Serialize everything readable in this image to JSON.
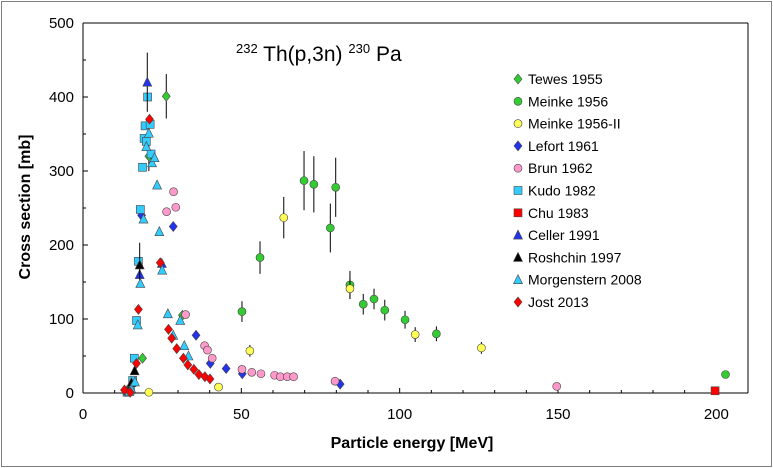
{
  "chart_data": {
    "type": "scatter",
    "title": {
      "prefix": "232",
      "main": "Th(p,3n)",
      "suffix": "230",
      "end": "Pa"
    },
    "xlabel": "Particle energy [MeV]",
    "ylabel": "Cross section [mb]",
    "xlim": [
      0,
      210
    ],
    "ylim": [
      0,
      500
    ],
    "xticks": [
      0,
      50,
      100,
      150,
      200
    ],
    "yticks": [
      0,
      100,
      200,
      300,
      400,
      500
    ],
    "legend_position": "right",
    "series": [
      {
        "name": "Tewes 1955",
        "marker": "diamond",
        "color": "#33cc33",
        "points": [
          [
            18.8,
            47,
            0
          ],
          [
            20.8,
            320,
            20
          ],
          [
            26.3,
            401,
            30
          ],
          [
            31.4,
            105,
            0
          ]
        ]
      },
      {
        "name": "Meinke 1956",
        "marker": "circle",
        "color": "#33cc33",
        "points": [
          [
            50.2,
            110,
            14
          ],
          [
            55.9,
            183,
            22
          ],
          [
            69.8,
            287,
            40
          ],
          [
            72.9,
            282,
            38
          ],
          [
            78.1,
            223,
            33
          ],
          [
            79.8,
            278,
            40
          ],
          [
            84.3,
            146,
            19
          ],
          [
            88.5,
            120,
            14
          ],
          [
            91.9,
            127,
            14
          ],
          [
            95.3,
            112,
            14
          ],
          [
            101.7,
            99,
            12
          ],
          [
            111.6,
            80,
            10
          ],
          [
            202.9,
            25,
            0
          ]
        ]
      },
      {
        "name": "Meinke 1956-II",
        "marker": "circle",
        "color": "#ffff55",
        "points": [
          [
            20.8,
            1,
            0
          ],
          [
            42.8,
            8,
            0
          ],
          [
            52.7,
            57,
            8
          ],
          [
            63.4,
            237,
            28
          ],
          [
            84.3,
            141,
            14
          ],
          [
            104.9,
            79,
            10
          ],
          [
            125.8,
            61,
            8
          ]
        ]
      },
      {
        "name": "Lefort 1961",
        "marker": "diamond",
        "color": "#2233ee",
        "points": [
          [
            18.5,
            240,
            0
          ],
          [
            28.5,
            225,
            0
          ],
          [
            35.7,
            78,
            0
          ],
          [
            40.2,
            40,
            0
          ],
          [
            45.2,
            33,
            0
          ],
          [
            50.3,
            26,
            0
          ],
          [
            81.2,
            12,
            0
          ]
        ]
      },
      {
        "name": "Brun 1962",
        "marker": "circle",
        "color": "#ff99cc",
        "points": [
          [
            26.4,
            245,
            0
          ],
          [
            28.6,
            272,
            0
          ],
          [
            29.3,
            251,
            0
          ],
          [
            32.4,
            106,
            0
          ],
          [
            38.4,
            64,
            0
          ],
          [
            39.3,
            58,
            0
          ],
          [
            40.8,
            47,
            0
          ],
          [
            50.2,
            32,
            0
          ],
          [
            53.3,
            28,
            0
          ],
          [
            56.2,
            26,
            0
          ],
          [
            60.5,
            24,
            0
          ],
          [
            62.3,
            22,
            0
          ],
          [
            64.5,
            22,
            0
          ],
          [
            66.5,
            22,
            0
          ],
          [
            79.6,
            16,
            0
          ],
          [
            149.6,
            9,
            0
          ]
        ]
      },
      {
        "name": "Kudo 1982",
        "marker": "square",
        "color": "#33ccff",
        "points": [
          [
            13.9,
            1,
            0
          ],
          [
            15.0,
            4,
            0
          ],
          [
            15.7,
            17,
            0
          ],
          [
            16.2,
            47,
            0
          ],
          [
            16.9,
            98,
            0
          ],
          [
            17.5,
            178,
            0
          ],
          [
            18.1,
            248,
            0
          ],
          [
            18.8,
            305,
            0
          ],
          [
            19.3,
            344,
            0
          ],
          [
            19.6,
            361,
            0
          ],
          [
            20.0,
            340,
            0
          ],
          [
            20.4,
            400,
            0
          ],
          [
            21.2,
            363,
            0
          ],
          [
            21.5,
            323,
            0
          ]
        ]
      },
      {
        "name": "Chu 1983",
        "marker": "square",
        "color": "#ff0000",
        "points": [
          [
            199.6,
            3,
            0
          ]
        ]
      },
      {
        "name": "Celler 1991",
        "marker": "triangle",
        "color": "#2233ee",
        "points": [
          [
            17.9,
            160,
            0
          ],
          [
            20.3,
            420,
            40
          ],
          [
            24.9,
            175,
            0
          ]
        ]
      },
      {
        "name": "Roshchin 1997",
        "marker": "triangle",
        "color": "#000000",
        "points": [
          [
            14.3,
            3,
            0
          ],
          [
            15.3,
            14,
            0
          ],
          [
            16.3,
            30,
            0
          ],
          [
            17.9,
            173,
            30
          ]
        ]
      },
      {
        "name": "Morgenstern 2008",
        "marker": "triangle",
        "color": "#33ccff",
        "points": [
          [
            14.6,
            2,
            0
          ],
          [
            15.2,
            6,
            0
          ],
          [
            16.4,
            15,
            0
          ],
          [
            17.3,
            92,
            0
          ],
          [
            18.1,
            148,
            0
          ],
          [
            19.1,
            235,
            0
          ],
          [
            20.0,
            333,
            0
          ],
          [
            20.8,
            351,
            0
          ],
          [
            21.8,
            311,
            0
          ],
          [
            22.6,
            318,
            0
          ],
          [
            23.4,
            281,
            0
          ],
          [
            24.1,
            218,
            0
          ],
          [
            25.0,
            166,
            0
          ],
          [
            26.8,
            107,
            0
          ],
          [
            28.5,
            78,
            0
          ],
          [
            30.7,
            98,
            0
          ],
          [
            32.0,
            64,
            0
          ],
          [
            33.3,
            50,
            0
          ]
        ]
      },
      {
        "name": "Jost 2013",
        "marker": "diamond",
        "color": "#ff0000",
        "points": [
          [
            13.1,
            4,
            0
          ],
          [
            14.9,
            1,
            0
          ],
          [
            16.9,
            40,
            0
          ],
          [
            17.5,
            113,
            0
          ],
          [
            21.0,
            370,
            0
          ],
          [
            24.4,
            176,
            0
          ],
          [
            27.0,
            86,
            0
          ],
          [
            28.0,
            74,
            0
          ],
          [
            29.6,
            60,
            0
          ],
          [
            31.7,
            47,
            0
          ],
          [
            33.1,
            38,
            0
          ],
          [
            35.0,
            32,
            0
          ],
          [
            36.6,
            25,
            0
          ],
          [
            38.5,
            22,
            0
          ],
          [
            40.1,
            19,
            0
          ]
        ]
      }
    ]
  }
}
